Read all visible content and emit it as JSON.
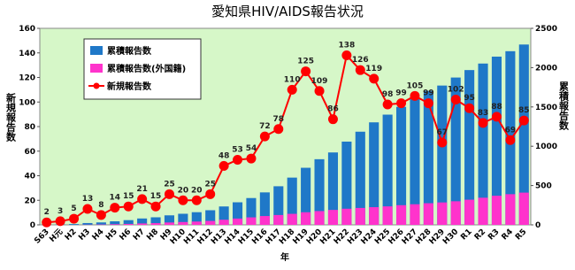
{
  "chart_data": {
    "type": "combo",
    "title": "愛知県HIV/AIDS報告状況",
    "x_label": "年",
    "y_label": "新規報告数",
    "y2_label": "累積報告数",
    "categories": [
      "S63",
      "H元",
      "H2",
      "H3",
      "H4",
      "H5",
      "H6",
      "H7",
      "H8",
      "H9",
      "H10",
      "H11",
      "H12",
      "H13",
      "H14",
      "H15",
      "H16",
      "H17",
      "H18",
      "H19",
      "H20",
      "H21",
      "H22",
      "H23",
      "H24",
      "H25",
      "H26",
      "H27",
      "H28",
      "H29",
      "H30",
      "R1",
      "R2",
      "R3",
      "R4",
      "R5"
    ],
    "series": [
      {
        "name": "累積報告数",
        "type": "bar",
        "axis": "y2",
        "color": "#1f78c8",
        "values": [
          2,
          5,
          10,
          23,
          31,
          45,
          60,
          81,
          96,
          121,
          141,
          161,
          186,
          234,
          287,
          341,
          413,
          491,
          601,
          726,
          835,
          921,
          1059,
          1185,
          1304,
          1402,
          1501,
          1606,
          1705,
          1772,
          1874,
          1969,
          2052,
          2140,
          2209,
          2294
        ]
      },
      {
        "name": "累積報告数(外国籍)",
        "type": "bar",
        "axis": "y2",
        "color": "#ff33cc",
        "values": [
          0,
          0,
          0,
          2,
          4,
          8,
          12,
          18,
          22,
          30,
          36,
          42,
          50,
          65,
          80,
          95,
          112,
          125,
          140,
          160,
          175,
          190,
          205,
          215,
          225,
          235,
          250,
          262,
          275,
          285,
          300,
          320,
          345,
          370,
          390,
          410
        ]
      },
      {
        "name": "新規報告数",
        "type": "line",
        "axis": "y",
        "color": "#ff0000",
        "values": [
          2,
          3,
          5,
          13,
          8,
          14,
          15,
          21,
          15,
          25,
          20,
          20,
          25,
          48,
          53,
          54,
          72,
          78,
          110,
          125,
          109,
          86,
          138,
          126,
          119,
          98,
          99,
          105,
          99,
          67,
          102,
          95,
          83,
          88,
          69,
          85
        ]
      }
    ],
    "ylim": [
      0,
      160
    ],
    "yticks": [
      0,
      20,
      40,
      60,
      80,
      100,
      120,
      140,
      160
    ],
    "y2lim": [
      0,
      2500
    ],
    "y2ticks": [
      0,
      500,
      1000,
      1500,
      2000,
      2500
    ],
    "grid": false
  }
}
